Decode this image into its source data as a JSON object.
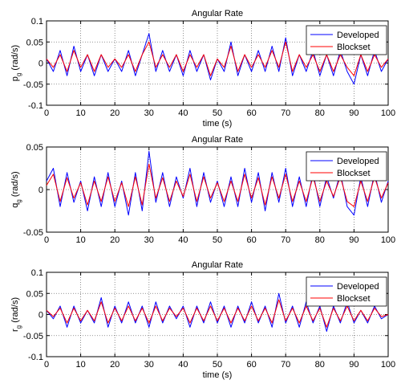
{
  "chart_data": [
    {
      "type": "line",
      "title": "Angular Rate",
      "xlabel": "time (s)",
      "ylabel": {
        "base": "p",
        "sub": "g",
        "unit": " (rad/s)"
      },
      "xlim": [
        0,
        100
      ],
      "ylim": [
        -0.1,
        0.1
      ],
      "xticks": [
        "0",
        "10",
        "20",
        "30",
        "40",
        "50",
        "60",
        "70",
        "80",
        "90",
        "100"
      ],
      "yticks": [
        "-0.1",
        "-0.05",
        "0",
        "0.05",
        "0.1"
      ],
      "grid": true,
      "legend_position": "top-right",
      "legend": [
        "Developed",
        "Blockset"
      ],
      "series": [
        {
          "name": "Developed",
          "color": "#0000ff",
          "x": [
            0,
            2,
            4,
            6,
            8,
            10,
            12,
            14,
            16,
            18,
            20,
            22,
            24,
            26,
            28,
            30,
            32,
            34,
            36,
            38,
            40,
            42,
            44,
            46,
            48,
            50,
            52,
            54,
            56,
            58,
            60,
            62,
            64,
            66,
            68,
            70,
            72,
            74,
            76,
            78,
            80,
            82,
            84,
            86,
            88,
            90,
            92,
            94,
            96,
            98,
            100
          ],
          "values": [
            0.01,
            -0.02,
            0.03,
            -0.03,
            0.04,
            -0.02,
            0.02,
            -0.03,
            0.02,
            -0.02,
            0.01,
            -0.02,
            0.03,
            -0.03,
            0.02,
            0.07,
            -0.02,
            0.03,
            -0.02,
            0.02,
            -0.03,
            0.03,
            -0.02,
            0.02,
            -0.04,
            0.01,
            -0.02,
            0.05,
            -0.03,
            0.02,
            -0.02,
            0.03,
            -0.02,
            0.04,
            -0.02,
            0.06,
            -0.03,
            0.02,
            -0.02,
            0.03,
            -0.03,
            0.02,
            -0.03,
            0.03,
            -0.02,
            -0.05,
            0.02,
            -0.03,
            0.03,
            -0.02,
            0.01
          ]
        },
        {
          "name": "Blockset",
          "color": "#ff0000",
          "x": [
            0,
            2,
            4,
            6,
            8,
            10,
            12,
            14,
            16,
            18,
            20,
            22,
            24,
            26,
            28,
            30,
            32,
            34,
            36,
            38,
            40,
            42,
            44,
            46,
            48,
            50,
            52,
            54,
            56,
            58,
            60,
            62,
            64,
            66,
            68,
            70,
            72,
            74,
            76,
            78,
            80,
            82,
            84,
            86,
            88,
            90,
            92,
            94,
            96,
            98,
            100
          ],
          "values": [
            0.01,
            -0.01,
            0.02,
            -0.02,
            0.03,
            -0.01,
            0.02,
            -0.02,
            0.02,
            -0.01,
            0.01,
            -0.01,
            0.02,
            -0.02,
            0.02,
            0.05,
            -0.01,
            0.02,
            -0.01,
            0.02,
            -0.02,
            0.02,
            -0.01,
            0.02,
            -0.03,
            0.01,
            -0.01,
            0.04,
            -0.02,
            0.02,
            -0.01,
            0.02,
            -0.01,
            0.03,
            -0.01,
            0.05,
            -0.02,
            0.02,
            -0.01,
            0.02,
            -0.02,
            0.02,
            -0.02,
            0.02,
            -0.01,
            -0.03,
            0.02,
            -0.02,
            0.02,
            -0.01,
            0.01
          ]
        }
      ]
    },
    {
      "type": "line",
      "title": "Angular Rate",
      "xlabel": "",
      "ylabel": {
        "base": "q",
        "sub": "g",
        "unit": " (rad/s)"
      },
      "xlim": [
        0,
        100
      ],
      "ylim": [
        -0.05,
        0.05
      ],
      "xticks": [
        "0",
        "10",
        "20",
        "30",
        "40",
        "50",
        "60",
        "70",
        "80",
        "90",
        "100"
      ],
      "yticks": [
        "-0.05",
        "0",
        "0.05"
      ],
      "grid": true,
      "legend_position": "top-right",
      "legend": [
        "Developed",
        "Blockset"
      ],
      "series": [
        {
          "name": "Developed",
          "color": "#0000ff",
          "x": [
            0,
            2,
            4,
            6,
            8,
            10,
            12,
            14,
            16,
            18,
            20,
            22,
            24,
            26,
            28,
            30,
            32,
            34,
            36,
            38,
            40,
            42,
            44,
            46,
            48,
            50,
            52,
            54,
            56,
            58,
            60,
            62,
            64,
            66,
            68,
            70,
            72,
            74,
            76,
            78,
            80,
            82,
            84,
            86,
            88,
            90,
            92,
            94,
            96,
            98,
            100
          ],
          "values": [
            0.01,
            0.025,
            -0.02,
            0.02,
            -0.015,
            0.01,
            -0.025,
            0.015,
            -0.02,
            0.02,
            -0.02,
            0.01,
            -0.03,
            0.02,
            -0.025,
            0.045,
            -0.015,
            0.02,
            -0.02,
            0.015,
            -0.01,
            0.025,
            -0.02,
            0.02,
            -0.015,
            0.01,
            -0.02,
            0.015,
            -0.02,
            0.025,
            -0.015,
            0.02,
            -0.025,
            0.02,
            -0.015,
            0.025,
            -0.02,
            0.015,
            -0.02,
            0.02,
            -0.02,
            0.015,
            -0.01,
            0.02,
            -0.02,
            -0.03,
            0.015,
            -0.02,
            0.02,
            -0.015,
            0.01
          ]
        },
        {
          "name": "Blockset",
          "color": "#ff0000",
          "x": [
            0,
            2,
            4,
            6,
            8,
            10,
            12,
            14,
            16,
            18,
            20,
            22,
            24,
            26,
            28,
            30,
            32,
            34,
            36,
            38,
            40,
            42,
            44,
            46,
            48,
            50,
            52,
            54,
            56,
            58,
            60,
            62,
            64,
            66,
            68,
            70,
            72,
            74,
            76,
            78,
            80,
            82,
            84,
            86,
            88,
            90,
            92,
            94,
            96,
            98,
            100
          ],
          "values": [
            0.005,
            0.018,
            -0.014,
            0.014,
            -0.01,
            0.008,
            -0.018,
            0.01,
            -0.014,
            0.015,
            -0.014,
            0.008,
            -0.02,
            0.015,
            -0.018,
            0.03,
            -0.01,
            0.014,
            -0.014,
            0.01,
            -0.008,
            0.018,
            -0.014,
            0.015,
            -0.01,
            0.008,
            -0.014,
            0.01,
            -0.014,
            0.018,
            -0.01,
            0.014,
            -0.018,
            0.015,
            -0.01,
            0.018,
            -0.014,
            0.01,
            -0.014,
            0.015,
            -0.014,
            0.01,
            -0.008,
            0.015,
            -0.014,
            -0.02,
            0.01,
            -0.014,
            0.015,
            -0.01,
            0.008
          ]
        }
      ]
    },
    {
      "type": "line",
      "title": "Angular Rate",
      "xlabel": "time (s)",
      "ylabel": {
        "base": "r",
        "sub": "g",
        "unit": " (rad/s)"
      },
      "xlim": [
        0,
        100
      ],
      "ylim": [
        -0.1,
        0.1
      ],
      "xticks": [
        "0",
        "10",
        "20",
        "30",
        "40",
        "50",
        "60",
        "70",
        "80",
        "90",
        "100"
      ],
      "yticks": [
        "-0.1",
        "-0.05",
        "0",
        "0.05",
        "0.1"
      ],
      "grid": true,
      "legend_position": "top-right",
      "legend": [
        "Developed",
        "Blockset"
      ],
      "series": [
        {
          "name": "Developed",
          "color": "#0000ff",
          "x": [
            0,
            2,
            4,
            6,
            8,
            10,
            12,
            14,
            16,
            18,
            20,
            22,
            24,
            26,
            28,
            30,
            32,
            34,
            36,
            38,
            40,
            42,
            44,
            46,
            48,
            50,
            52,
            54,
            56,
            58,
            60,
            62,
            64,
            66,
            68,
            70,
            72,
            74,
            76,
            78,
            80,
            82,
            84,
            86,
            88,
            90,
            92,
            94,
            96,
            98,
            100
          ],
          "values": [
            0.01,
            -0.01,
            0.02,
            -0.03,
            0.02,
            -0.02,
            0.01,
            -0.02,
            0.04,
            -0.03,
            0.02,
            -0.02,
            0.03,
            -0.02,
            0.02,
            -0.03,
            0.03,
            -0.02,
            0.02,
            -0.01,
            0.02,
            -0.03,
            0.02,
            -0.02,
            0.03,
            -0.02,
            0.02,
            -0.03,
            0.02,
            -0.02,
            0.03,
            -0.02,
            0.02,
            -0.03,
            0.05,
            -0.02,
            0.02,
            -0.03,
            0.03,
            -0.02,
            0.02,
            -0.04,
            0.02,
            -0.02,
            0.03,
            -0.02,
            0.01,
            -0.02,
            0.02,
            -0.01,
            0.0
          ]
        },
        {
          "name": "Blockset",
          "color": "#ff0000",
          "x": [
            0,
            2,
            4,
            6,
            8,
            10,
            12,
            14,
            16,
            18,
            20,
            22,
            24,
            26,
            28,
            30,
            32,
            34,
            36,
            38,
            40,
            42,
            44,
            46,
            48,
            50,
            52,
            54,
            56,
            58,
            60,
            62,
            64,
            66,
            68,
            70,
            72,
            74,
            76,
            78,
            80,
            82,
            84,
            86,
            88,
            90,
            92,
            94,
            96,
            98,
            100
          ],
          "values": [
            0.01,
            -0.005,
            0.015,
            -0.02,
            0.015,
            -0.015,
            0.01,
            -0.015,
            0.03,
            -0.02,
            0.015,
            -0.015,
            0.02,
            -0.015,
            0.015,
            -0.02,
            0.02,
            -0.015,
            0.015,
            -0.005,
            0.015,
            -0.02,
            0.015,
            -0.015,
            0.02,
            -0.015,
            0.015,
            -0.02,
            0.015,
            -0.015,
            0.02,
            -0.015,
            0.015,
            -0.02,
            0.035,
            -0.015,
            0.015,
            -0.02,
            0.02,
            -0.015,
            0.015,
            -0.03,
            0.015,
            -0.015,
            0.02,
            -0.015,
            0.01,
            -0.015,
            0.015,
            -0.005,
            0.0
          ]
        }
      ]
    }
  ]
}
